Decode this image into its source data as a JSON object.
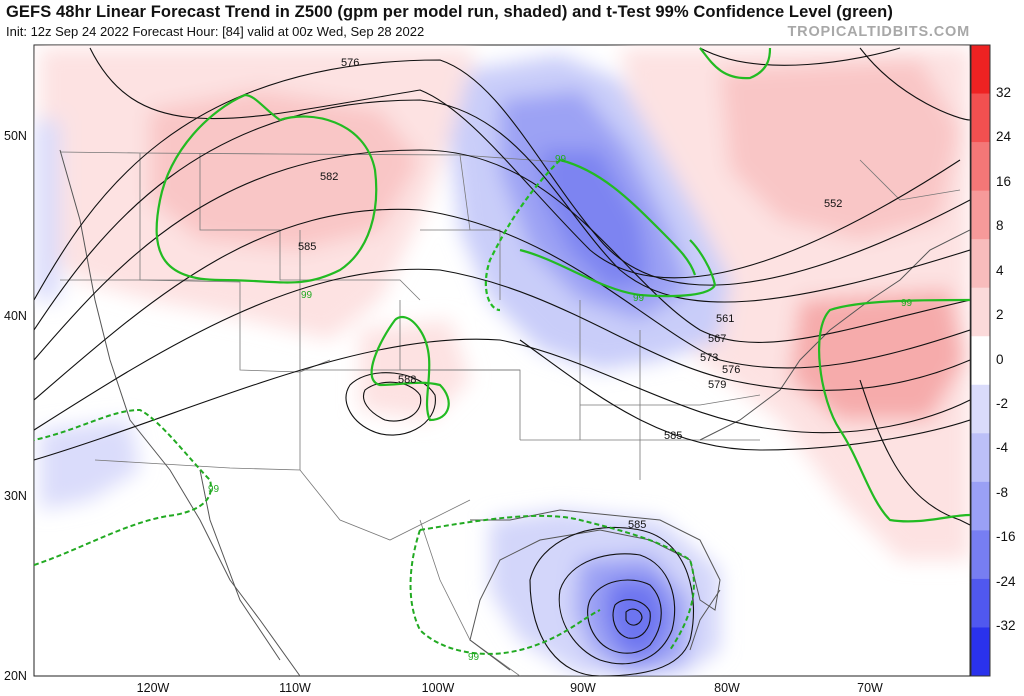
{
  "header": {
    "title": "GEFS 48hr Linear Forecast Trend in Z500 (gpm per model run, shaded) and t-Test 99% Confidence Level (green)",
    "subtitle": "Init: 12z Sep 24 2022   Forecast Hour: [84]   valid at 00z Wed, Sep 28 2022",
    "brand": "TROPICALTIDBITS.COM"
  },
  "axes": {
    "lat_labels": [
      "50N",
      "40N",
      "30N",
      "20N"
    ],
    "lon_labels": [
      "120W",
      "110W",
      "100W",
      "90W",
      "80W",
      "70W"
    ]
  },
  "colorbar": {
    "labels": [
      "32",
      "24",
      "16",
      "8",
      "4",
      "2",
      "0",
      "-2",
      "-4",
      "-8",
      "-16",
      "-24",
      "-32"
    ],
    "colors_positive": [
      "#ee2222",
      "#f25050",
      "#f47777",
      "#f69a9a",
      "#f8bcbc",
      "#fbdada"
    ],
    "colors_negative": [
      "#dadcfb",
      "#bcc0f8",
      "#9aa0f5",
      "#777ef2",
      "#5058ef",
      "#2a32ec"
    ]
  },
  "contours": {
    "labels": [
      "576",
      "582",
      "585",
      "588",
      "552",
      "561",
      "567",
      "573",
      "576",
      "579",
      "585",
      "585"
    ],
    "confidence_label": "99"
  },
  "colors": {
    "contour": "#111111",
    "confidence": "#22bb22",
    "border": "#6a6a6a"
  }
}
